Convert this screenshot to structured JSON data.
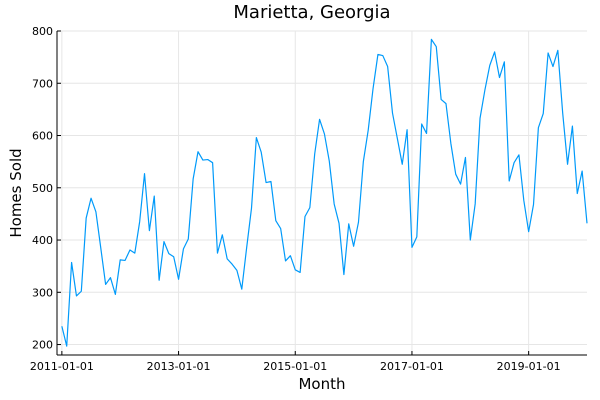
{
  "chart_data": {
    "type": "line",
    "title": "Marietta, Georgia",
    "xlabel": "Month",
    "ylabel": "Homes Sold",
    "xlim": [
      "2010-12-01",
      "2020-01-01"
    ],
    "ylim": [
      180,
      800
    ],
    "x_ticks": [
      "2011-01-01",
      "2013-01-01",
      "2015-01-01",
      "2017-01-01",
      "2019-01-01"
    ],
    "y_ticks": [
      200,
      300,
      400,
      500,
      600,
      700,
      800
    ],
    "grid": true,
    "legend": "none",
    "line_color": "#009AFA",
    "start_month": "2011-01",
    "series": [
      {
        "values": [
          235,
          197,
          357,
          293,
          302,
          442,
          480,
          454,
          385,
          315,
          328,
          296,
          362,
          361,
          381,
          375,
          435,
          527,
          418,
          484,
          323,
          397,
          374,
          368,
          325,
          383,
          402,
          517,
          569,
          553,
          554,
          548,
          375,
          410,
          364,
          354,
          342,
          306,
          385,
          461,
          596,
          568,
          510,
          512,
          437,
          422,
          360,
          370,
          343,
          338,
          445,
          462,
          565,
          631,
          603,
          551,
          469,
          432,
          334,
          431,
          388,
          434,
          550,
          610,
          690,
          755,
          753,
          732,
          643,
          594,
          545,
          611,
          386,
          406,
          622,
          604,
          784,
          770,
          669,
          661,
          585,
          526,
          507,
          558,
          400,
          469,
          633,
          687,
          734,
          760,
          711,
          741,
          513,
          548,
          563,
          476,
          416,
          468,
          615,
          642,
          758,
          732,
          763,
          643,
          545,
          618,
          489,
          532,
          432
        ]
      }
    ]
  }
}
